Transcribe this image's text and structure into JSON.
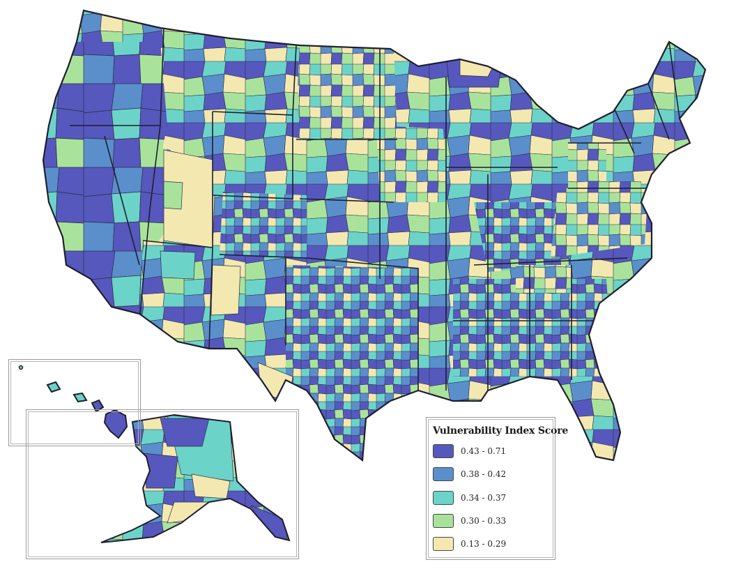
{
  "legend": {
    "title": "Vulnerability Index Score",
    "classes": [
      {
        "label": "0.43 - 0.71",
        "color": "#5658bd"
      },
      {
        "label": "0.38 - 0.42",
        "color": "#5a8fcc"
      },
      {
        "label": "0.34 - 0.37",
        "color": "#6cd3c9"
      },
      {
        "label": "0.30 - 0.33",
        "color": "#a9e39b"
      },
      {
        "label": "0.13 - 0.29",
        "color": "#f4e8b1"
      }
    ]
  },
  "map": {
    "region": "United States counties",
    "insets": [
      "Hawaii",
      "Alaska"
    ],
    "outline_color": "#1e1e2e"
  }
}
